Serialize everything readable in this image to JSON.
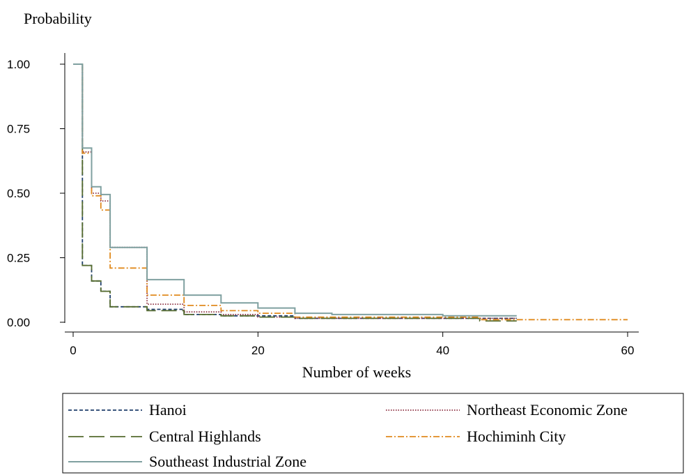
{
  "chart_data": {
    "type": "line",
    "title": "",
    "ylabel": "Probability",
    "xlabel": "Number of weeks",
    "xlim": [
      -1,
      61
    ],
    "ylim": [
      -0.03,
      1.05
    ],
    "x_ticks": [
      0,
      20,
      40,
      60
    ],
    "y_ticks": [
      0,
      0.25,
      0.5,
      0.75,
      1
    ],
    "x_tick_labels": [
      "0",
      "20",
      "40",
      "60"
    ],
    "y_tick_labels": [
      "0.00",
      "0.25",
      "0.50",
      "0.75",
      "1.00"
    ],
    "grid": false,
    "legend_position": "bottom",
    "step": true,
    "series": [
      {
        "name": "Hanoi",
        "color": "#1f3f6b",
        "style": "short-dash",
        "points": [
          [
            0,
            1
          ],
          [
            1,
            1
          ],
          [
            1,
            0.22
          ],
          [
            2,
            0.22
          ],
          [
            2,
            0.16
          ],
          [
            3,
            0.16
          ],
          [
            3,
            0.12
          ],
          [
            4,
            0.12
          ],
          [
            4,
            0.06
          ],
          [
            8,
            0.06
          ],
          [
            8,
            0.05
          ],
          [
            12,
            0.05
          ],
          [
            12,
            0.03
          ],
          [
            16,
            0.03
          ],
          [
            16,
            0.025
          ],
          [
            24,
            0.025
          ],
          [
            24,
            0.015
          ],
          [
            48,
            0.015
          ]
        ]
      },
      {
        "name": "Northeast Economic Zone",
        "color": "#8b2c3e",
        "style": "dotted",
        "points": [
          [
            0,
            1
          ],
          [
            1,
            1
          ],
          [
            1,
            0.66
          ],
          [
            2,
            0.66
          ],
          [
            2,
            0.5
          ],
          [
            3,
            0.5
          ],
          [
            3,
            0.47
          ],
          [
            4,
            0.47
          ],
          [
            4,
            0.29
          ],
          [
            8,
            0.29
          ],
          [
            8,
            0.07
          ],
          [
            12,
            0.07
          ],
          [
            12,
            0.04
          ],
          [
            16,
            0.04
          ],
          [
            16,
            0.03
          ],
          [
            20,
            0.03
          ],
          [
            20,
            0.02
          ],
          [
            24,
            0.02
          ],
          [
            24,
            0.015
          ],
          [
            48,
            0.015
          ]
        ]
      },
      {
        "name": "Central Highlands",
        "color": "#556b2f",
        "style": "long-dash",
        "points": [
          [
            0,
            1
          ],
          [
            1,
            1
          ],
          [
            1,
            0.22
          ],
          [
            2,
            0.22
          ],
          [
            2,
            0.16
          ],
          [
            3,
            0.16
          ],
          [
            3,
            0.12
          ],
          [
            4,
            0.12
          ],
          [
            4,
            0.06
          ],
          [
            8,
            0.06
          ],
          [
            8,
            0.045
          ],
          [
            12,
            0.045
          ],
          [
            12,
            0.03
          ],
          [
            16,
            0.03
          ],
          [
            16,
            0.025
          ],
          [
            20,
            0.025
          ],
          [
            20,
            0.02
          ],
          [
            24,
            0.02
          ],
          [
            24,
            0.015
          ],
          [
            44,
            0.015
          ],
          [
            44,
            0.005
          ],
          [
            48,
            0.005
          ]
        ]
      },
      {
        "name": "Hochiminh City",
        "color": "#e08a1e",
        "style": "dash-dot",
        "points": [
          [
            0,
            1
          ],
          [
            1,
            1
          ],
          [
            1,
            0.655
          ],
          [
            2,
            0.655
          ],
          [
            2,
            0.49
          ],
          [
            3,
            0.49
          ],
          [
            3,
            0.435
          ],
          [
            4,
            0.435
          ],
          [
            4,
            0.21
          ],
          [
            8,
            0.21
          ],
          [
            8,
            0.105
          ],
          [
            12,
            0.105
          ],
          [
            12,
            0.065
          ],
          [
            16,
            0.065
          ],
          [
            16,
            0.045
          ],
          [
            20,
            0.045
          ],
          [
            20,
            0.035
          ],
          [
            24,
            0.035
          ],
          [
            24,
            0.02
          ],
          [
            44,
            0.02
          ],
          [
            44,
            0.01
          ],
          [
            60,
            0.01
          ]
        ]
      },
      {
        "name": "Southeast Industrial Zone",
        "color": "#7fa0a0",
        "style": "solid",
        "points": [
          [
            0,
            1
          ],
          [
            1,
            1
          ],
          [
            1,
            0.675
          ],
          [
            2,
            0.675
          ],
          [
            2,
            0.525
          ],
          [
            3,
            0.525
          ],
          [
            3,
            0.495
          ],
          [
            4,
            0.495
          ],
          [
            4,
            0.29
          ],
          [
            8,
            0.29
          ],
          [
            8,
            0.165
          ],
          [
            12,
            0.165
          ],
          [
            12,
            0.105
          ],
          [
            16,
            0.105
          ],
          [
            16,
            0.075
          ],
          [
            20,
            0.075
          ],
          [
            20,
            0.055
          ],
          [
            24,
            0.055
          ],
          [
            24,
            0.035
          ],
          [
            28,
            0.035
          ],
          [
            28,
            0.03
          ],
          [
            40,
            0.03
          ],
          [
            40,
            0.025
          ],
          [
            48,
            0.025
          ]
        ]
      }
    ]
  }
}
